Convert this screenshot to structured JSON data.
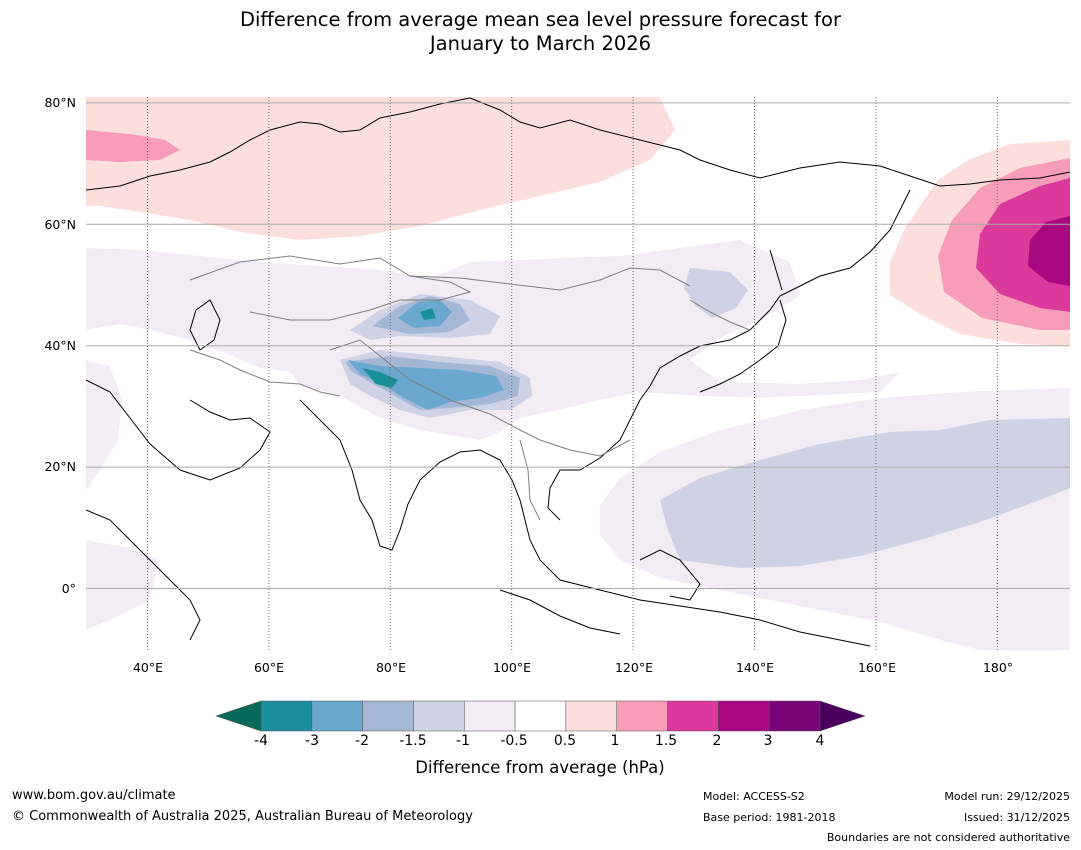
{
  "title": {
    "line1": "Difference from average mean sea level pressure forecast for",
    "line2": "January to March 2026"
  },
  "map": {
    "lat_labels": [
      "80°N",
      "60°N",
      "40°N",
      "20°N",
      "0°"
    ],
    "lon_labels": [
      "40°E",
      "60°E",
      "80°E",
      "100°E",
      "120°E",
      "140°E",
      "160°E",
      "180°"
    ],
    "lat_range": [
      -10,
      80
    ],
    "lon_range": [
      30,
      190
    ],
    "anomaly_colors": {
      "neg4": "#05695c",
      "neg3": "#1a8e99",
      "neg2": "#6aa8cf",
      "neg1_5": "#a5b7d6",
      "neg1": "#cfd1e4",
      "neg0_5": "#f2ecf4",
      "zero": "#ffffff",
      "pos0_5": "#fcdedd",
      "pos1": "#f89db9",
      "pos1_5": "#db3a9c",
      "pos2": "#a80880",
      "pos3": "#790478",
      "pos4": "#4b0060"
    }
  },
  "colorbar": {
    "ticks": [
      "-4",
      "-3",
      "-2",
      "-1.5",
      "-1",
      "-0.5",
      "0.5",
      "1",
      "1.5",
      "2",
      "3",
      "4"
    ],
    "colors": [
      "#1a8e99",
      "#6aa8cf",
      "#a5b7d6",
      "#cfd1e4",
      "#f2ecf4",
      "#ffffff",
      "#fcdedd",
      "#f89db9",
      "#db3a9c",
      "#a80880",
      "#790478"
    ],
    "low_color": "#05695c",
    "high_color": "#4b0060",
    "label": "Difference from average (hPa)"
  },
  "footer": {
    "website": "www.bom.gov.au/climate",
    "copyright": "© Commonwealth of Australia 2025, Australian Bureau of Meteorology",
    "model": "Model: ACCESS-S2",
    "base_period": "Base period: 1981-2018",
    "model_run": "Model run: 29/12/2025",
    "issued": "Issued: 31/12/2025",
    "disclaimer": "Boundaries are not considered authoritative"
  }
}
